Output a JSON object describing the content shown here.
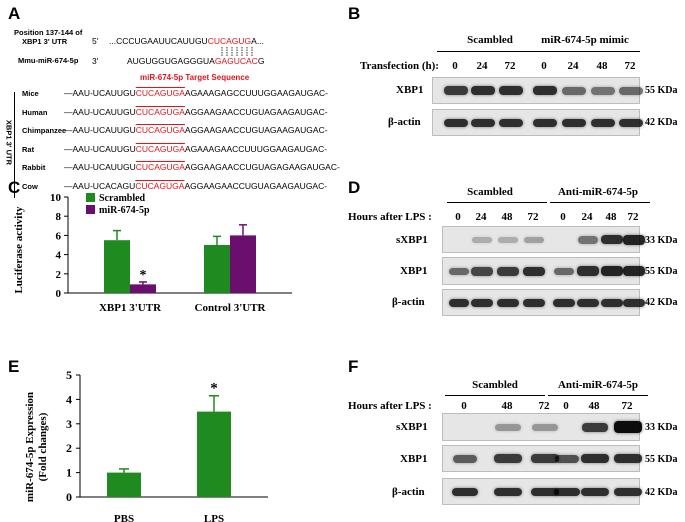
{
  "panels": {
    "A": {
      "letter": "A",
      "position_label_1": "Position 137-144 of",
      "position_label_2": "XBP1 3' UTR",
      "mmu_label": "Mmu-miR-674-5p",
      "five_prime": "5'",
      "three_prime": "3'",
      "utr_seq_pre": "...CCCUGAAUUCAUUGU",
      "utr_seq_red": "CUCAGUG",
      "utr_seq_post": "A...",
      "mir_seq_pre": "AUGUGGUGAGGGUA",
      "mir_seq_red": "GAGUCAC",
      "mir_seq_post": "G",
      "target_title": "miR-674-5p Target Sequence",
      "side_label": "XBP1 3' UTR",
      "species": [
        {
          "name": "Mice",
          "pre": "AAU-UCAUUGU",
          "red": "CUCAGUGA",
          "post": "AGAAAGAGCCUUUGGAAGAUGAC-"
        },
        {
          "name": "Human",
          "pre": "AAU-UCAUUGU",
          "red": "CUCAGUGA",
          "post": "AGGAAGAACCUGUAGAAGAUGAC-"
        },
        {
          "name": "Chimpanzee",
          "pre": "AAU-UCAUUGU",
          "red": "CUCAGUGA",
          "post": "AGGAAGAACCUGUAGAAGAUGAC-"
        },
        {
          "name": "Rat",
          "pre": "AAU-UCAUUGU",
          "red": "CUCAGUGA",
          "post": "AGAAAGAACCUUUGGAAGAUGAC-"
        },
        {
          "name": "Rabbit",
          "pre": "AAU-UCAUUGU",
          "red": "CUCAGUGA",
          "post": "AGGAAGAACCUGUAGAGAAGAUGAC-"
        },
        {
          "name": "Cow",
          "pre": "AAU-UCACAGU",
          "red": "CUCAGUGA",
          "post": "AGGAAGAACCUGUAGAAGAUGAC-"
        }
      ]
    },
    "B": {
      "letter": "B",
      "group1": "Scambled",
      "group2": "miR-674-5p mimic",
      "lane_header": "Transfection (h):",
      "lanes": [
        "0",
        "24",
        "72",
        "0",
        "24",
        "48",
        "72"
      ],
      "rows": [
        {
          "label": "XBP1",
          "kda": "55 KDa"
        },
        {
          "label": "β-actin",
          "kda": "42 KDa"
        }
      ]
    },
    "C": {
      "letter": "C",
      "legend": [
        "Scrambled",
        "miR-674-5p"
      ],
      "star": "*"
    },
    "D": {
      "letter": "D",
      "group1": "Scambled",
      "group2": "Anti-miR-674-5p",
      "lane_header": "Hours after LPS :",
      "lanes": [
        "0",
        "24",
        "48",
        "72",
        "0",
        "24",
        "48",
        "72"
      ],
      "rows": [
        {
          "label": "sXBP1",
          "kda": "33 KDa"
        },
        {
          "label": "XBP1",
          "kda": "55 KDa"
        },
        {
          "label": "β-actin",
          "kda": "42 KDa"
        }
      ]
    },
    "E": {
      "letter": "E",
      "star": "*"
    },
    "F": {
      "letter": "F",
      "group1": "Scambled",
      "group2": "Anti-miR-674-5p",
      "lane_header": "Hours after LPS :",
      "lanes": [
        "0",
        "48",
        "72",
        "0",
        "48",
        "72"
      ],
      "rows": [
        {
          "label": "sXBP1",
          "kda": "33 KDa"
        },
        {
          "label": "XBP1",
          "kda": "55 KDa"
        },
        {
          "label": "β-actin",
          "kda": "42 KDa"
        }
      ]
    }
  },
  "chart_data": [
    {
      "type": "bar",
      "panel": "C",
      "categories": [
        "XBP1 3'UTR",
        "Control 3'UTR"
      ],
      "series": [
        {
          "name": "Scrambled",
          "values": [
            5.5,
            5.0
          ],
          "errors": [
            1.0,
            0.9
          ],
          "color": "#1f8a1f"
        },
        {
          "name": "miR-674-5p",
          "values": [
            0.9,
            6.0
          ],
          "errors": [
            0.25,
            1.1
          ],
          "color": "#6a0f6e"
        }
      ],
      "ylabel": "Luciferase activity",
      "ylim": [
        0,
        10
      ],
      "yticks": [
        "0",
        "2",
        "4",
        "6",
        "8",
        "10"
      ],
      "legend_position": "top-left"
    },
    {
      "type": "bar",
      "panel": "E",
      "categories": [
        "PBS",
        "LPS"
      ],
      "series": [
        {
          "name": "",
          "values": [
            1.0,
            3.5
          ],
          "errors": [
            0.15,
            0.65
          ],
          "color": "#1f8a1f"
        }
      ],
      "ylabel": "miR-674-5p  Expression\n(Fold changes)",
      "ylabel_line1": "miR-674-5p  Expression",
      "ylabel_line2": "(Fold changes)",
      "ylim": [
        0,
        5
      ],
      "yticks": [
        "0",
        "1",
        "2",
        "3",
        "4",
        "5"
      ]
    }
  ]
}
